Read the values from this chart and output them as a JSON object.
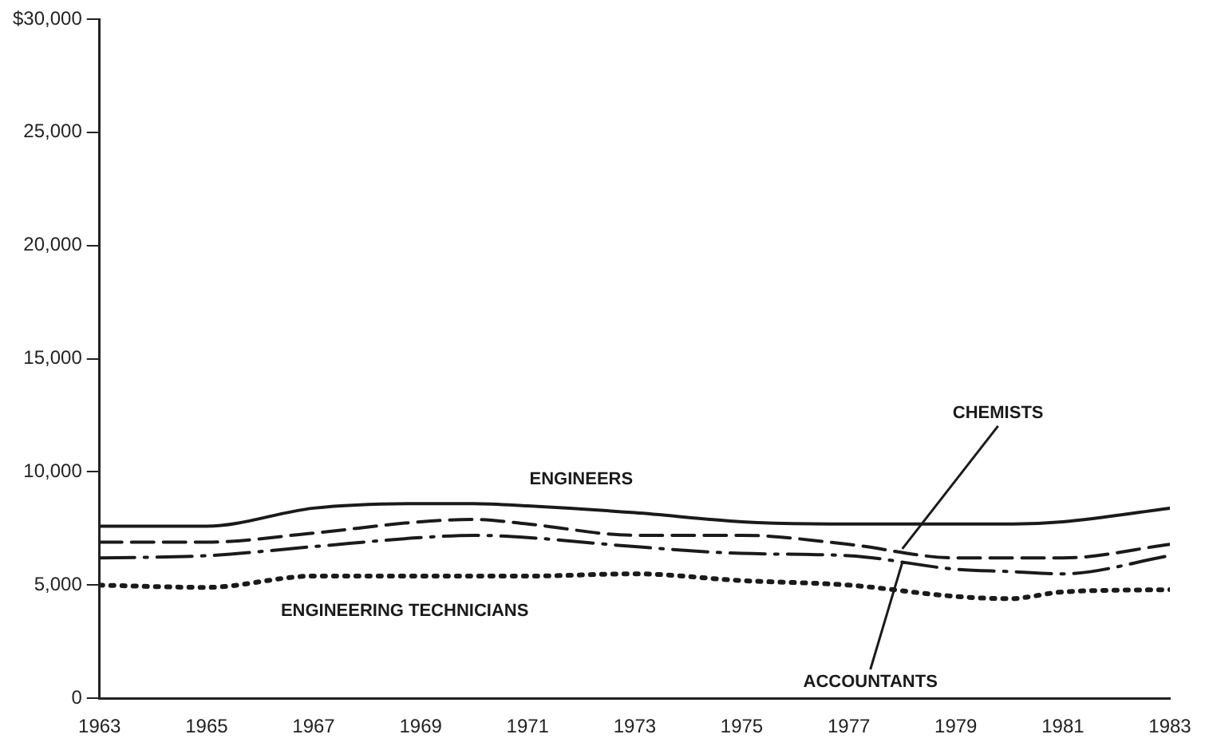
{
  "chart_data": {
    "type": "line",
    "x": [
      1963,
      1965,
      1967,
      1969,
      1970,
      1971,
      1973,
      1975,
      1977,
      1979,
      1980,
      1981,
      1983
    ],
    "series": [
      {
        "color": "#1a1a1a",
        "line_style": "solid",
        "values": [
          7600,
          7600,
          8400,
          8600,
          8600,
          8500,
          8200,
          7800,
          7700,
          7700,
          7700,
          7800,
          8400
        ]
      },
      {
        "color": "#1a1a1a",
        "line_style": "dashed",
        "values": [
          6900,
          6900,
          7300,
          7800,
          7900,
          7700,
          7200,
          7200,
          6800,
          6200,
          6200,
          6200,
          6800
        ]
      },
      {
        "color": "#1a1a1a",
        "line_style": "dashdot",
        "values": [
          6200,
          6300,
          6700,
          7100,
          7200,
          7100,
          6700,
          6400,
          6300,
          5700,
          5600,
          5500,
          6300
        ]
      },
      {
        "color": "#1a1a1a",
        "line_style": "dotted",
        "values": [
          5000,
          4900,
          5400,
          5400,
          5400,
          5400,
          5500,
          5200,
          5000,
          4500,
          4400,
          4700,
          4800
        ]
      }
    ],
    "xlim": [
      1963,
      1983
    ],
    "xticks": [
      1963,
      1965,
      1967,
      1969,
      1971,
      1973,
      1975,
      1977,
      1979,
      1981,
      1983
    ],
    "ylim": [
      0,
      30000
    ],
    "yticks": [
      0,
      {
        "value": 5000,
        "label": "5,000"
      },
      {
        "value": 10000,
        "label": "10,000"
      },
      {
        "value": 15000,
        "label": "15,000"
      },
      {
        "value": 20000,
        "label": "20,000"
      },
      {
        "value": 25000,
        "label": "25,000"
      },
      {
        "value": 30000,
        "label": "$30,000"
      }
    ],
    "annotations": [
      {
        "text": "ENGINEERS",
        "x": 1972,
        "y": 8400
      },
      {
        "text": "CHEMISTS",
        "x": 1978,
        "y": 6600
      },
      {
        "text": "ENGINEERING TECHNICIANS",
        "x": 1969,
        "y": 5400
      },
      {
        "text": "ACCOUNTANTS",
        "x": 1978,
        "y": 6000
      }
    ],
    "grid": false,
    "legend": false,
    "marker": "none"
  }
}
